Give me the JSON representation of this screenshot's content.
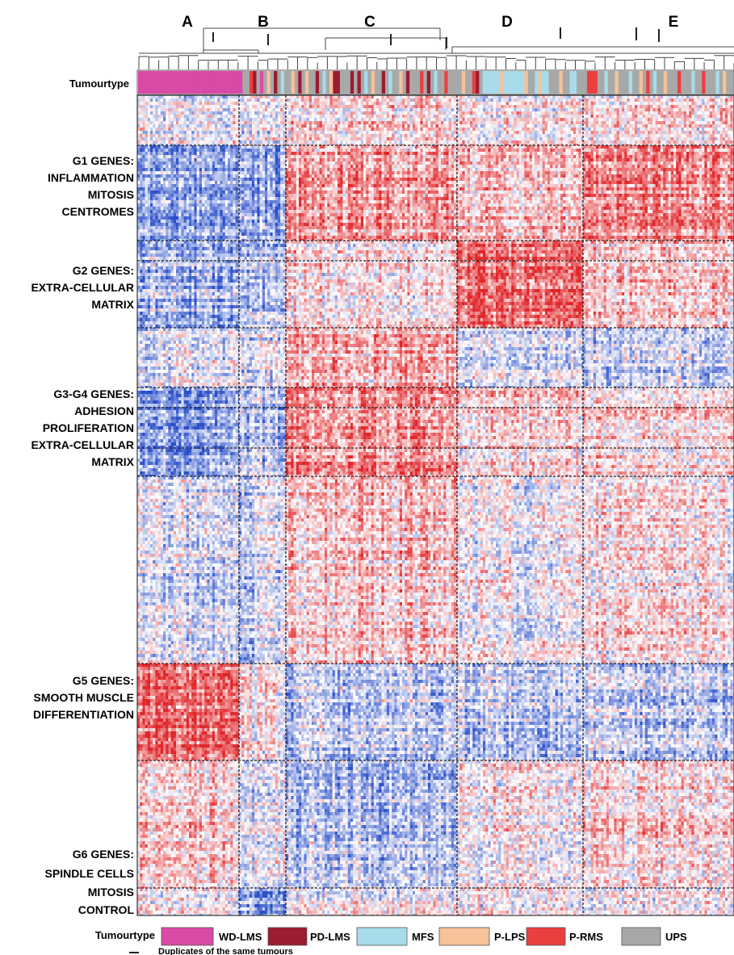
{
  "chart_data": {
    "type": "heatmap",
    "cluster_labels": [
      "A",
      "B",
      "C",
      "D",
      "E"
    ],
    "annotation_row_label": "Tumourtype",
    "gene_groups": [
      {
        "id": "G1",
        "lines": [
          "G1 GENES:",
          "INFLAMMATION",
          "MITOSIS",
          "CENTROMES"
        ]
      },
      {
        "id": "G2",
        "lines": [
          "G2 GENES:",
          "EXTRA-CELLULAR",
          "MATRIX"
        ]
      },
      {
        "id": "G3G4",
        "lines": [
          "G3-G4 GENES:",
          "ADHESION",
          "PROLIFERATION",
          "EXTRA-CELLULAR",
          "MATRIX"
        ]
      },
      {
        "id": "G5",
        "lines": [
          "G5 GENES:",
          "SMOOTH MUSCLE",
          "DIFFERENTIATION"
        ]
      },
      {
        "id": "G6",
        "lines": [
          "G6 GENES:",
          "SPINDLE CELLS",
          "MITOSIS",
          "CONTROL"
        ]
      }
    ],
    "legend": {
      "title": "Tumourtype",
      "items": [
        {
          "label": "WD-LMS",
          "color": "#d94aa6"
        },
        {
          "label": "PD-LMS",
          "color": "#9b1b30"
        },
        {
          "label": "MFS",
          "color": "#a9dcea"
        },
        {
          "label": "P-LPS",
          "color": "#f6c29a"
        },
        {
          "label": "P-RMS",
          "color": "#ea3f3f"
        },
        {
          "label": "UPS",
          "color": "#a7a9a8"
        }
      ],
      "duplicate_note": "Duplicates of the same tumours"
    },
    "tumour_type_sequence": [
      "WD-LMS",
      "WD-LMS",
      "WD-LMS",
      "WD-LMS",
      "WD-LMS",
      "WD-LMS",
      "WD-LMS",
      "WD-LMS",
      "WD-LMS",
      "WD-LMS",
      "WD-LMS",
      "WD-LMS",
      "WD-LMS",
      "WD-LMS",
      "WD-LMS",
      "WD-LMS",
      "WD-LMS",
      "WD-LMS",
      "WD-LMS",
      "WD-LMS",
      "WD-LMS",
      "WD-LMS",
      "WD-LMS",
      "WD-LMS",
      "WD-LMS",
      "WD-LMS",
      "WD-LMS",
      "WD-LMS",
      "WD-LMS",
      "WD-LMS",
      "UPS",
      "UPS",
      "P-RMS",
      "PD-LMS",
      "UPS",
      "WD-LMS",
      "UPS",
      "P-LPS",
      "UPS",
      "PD-LMS",
      "UPS",
      "MFS",
      "UPS",
      "UPS",
      "P-LPS",
      "UPS",
      "PD-LMS",
      "UPS",
      "P-LPS",
      "UPS",
      "UPS",
      "PD-LMS",
      "UPS",
      "MFS",
      "UPS",
      "P-LPS",
      "PD-LMS",
      "PD-LMS",
      "UPS",
      "UPS",
      "UPS",
      "PD-LMS",
      "UPS",
      "PD-LMS",
      "UPS",
      "MFS",
      "UPS",
      "P-LPS",
      "UPS",
      "UPS",
      "PD-LMS",
      "UPS",
      "MFS",
      "UPS",
      "UPS",
      "P-LPS",
      "UPS",
      "PD-LMS",
      "UPS",
      "UPS",
      "UPS",
      "P-RMS",
      "UPS",
      "PD-LMS",
      "UPS",
      "MFS",
      "UPS",
      "UPS",
      "P-RMS",
      "UPS",
      "UPS",
      "UPS",
      "UPS",
      "P-LPS",
      "UPS",
      "UPS",
      "P-RMS",
      "PD-LMS",
      "UPS",
      "MFS",
      "MFS",
      "MFS",
      "MFS",
      "MFS",
      "P-LPS",
      "MFS",
      "MFS",
      "MFS",
      "MFS",
      "MFS",
      "MFS",
      "P-LPS",
      "UPS",
      "UPS",
      "MFS",
      "P-LPS",
      "MFS",
      "MFS",
      "UPS",
      "UPS",
      "UPS",
      "P-LPS",
      "UPS",
      "UPS",
      "MFS",
      "MFS",
      "UPS",
      "UPS",
      "UPS",
      "P-RMS",
      "P-RMS",
      "P-RMS",
      "UPS",
      "UPS",
      "MFS",
      "UPS",
      "UPS",
      "P-LPS",
      "UPS",
      "UPS",
      "UPS",
      "MFS",
      "UPS",
      "UPS",
      "P-LPS",
      "UPS",
      "P-RMS",
      "UPS",
      "MFS",
      "UPS",
      "UPS",
      "P-LPS",
      "UPS",
      "UPS",
      "UPS",
      "P-RMS",
      "UPS",
      "UPS",
      "UPS",
      "MFS",
      "UPS",
      "UPS",
      "P-RMS",
      "UPS",
      "UPS",
      "UPS",
      "MFS",
      "UPS",
      "P-LPS",
      "UPS",
      "UPS"
    ],
    "color_scale": {
      "low": "#2a4fc9",
      "mid": "#ffffff",
      "high": "#e0262a"
    },
    "expression_pattern": {
      "columns": [
        "A",
        "B",
        "C",
        "D",
        "E"
      ],
      "rows": [
        {
          "group": "top",
          "values": [
            -0.1,
            -0.1,
            0.2,
            0.1,
            0.1
          ]
        },
        {
          "group": "G1",
          "values": [
            -0.6,
            -0.6,
            0.5,
            0.3,
            0.6
          ]
        },
        {
          "group": "G2",
          "values": [
            -0.5,
            -0.4,
            0.2,
            0.8,
            0.3
          ]
        },
        {
          "group": "G3",
          "values": [
            -0.2,
            -0.2,
            0.4,
            -0.2,
            -0.3
          ]
        },
        {
          "group": "G3G4",
          "values": [
            -0.6,
            -0.4,
            0.6,
            0.2,
            0.2
          ]
        },
        {
          "group": "mid",
          "values": [
            -0.2,
            -0.3,
            0.3,
            0.0,
            0.1
          ]
        },
        {
          "group": "G5",
          "values": [
            0.8,
            0.1,
            -0.3,
            -0.3,
            -0.3
          ]
        },
        {
          "group": "G6",
          "values": [
            0.2,
            -0.1,
            -0.4,
            0.1,
            0.2
          ]
        },
        {
          "group": "control",
          "values": [
            0.1,
            -0.7,
            0.0,
            0.0,
            0.0
          ]
        }
      ]
    }
  }
}
